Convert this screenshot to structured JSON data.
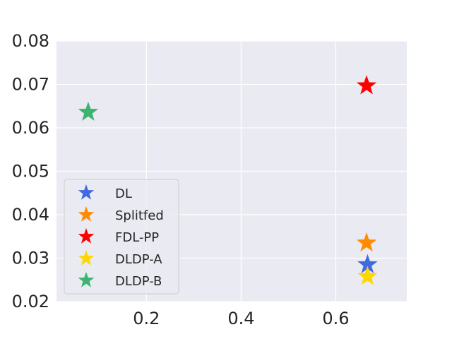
{
  "chart_data": {
    "type": "scatter",
    "marker": "star",
    "grid": true,
    "xlim": [
      0.01,
      0.75
    ],
    "ylim": [
      0.02,
      0.08
    ],
    "x_ticks": [
      0.2,
      0.4,
      0.6
    ],
    "y_ticks": [
      0.02,
      0.03,
      0.04,
      0.05,
      0.06,
      0.07,
      0.08
    ],
    "x_tick_labels": [
      "0.2",
      "0.4",
      "0.6"
    ],
    "y_tick_labels": [
      "0.02",
      "0.03",
      "0.04",
      "0.05",
      "0.06",
      "0.07",
      "0.08"
    ],
    "legend_position": "lower-left",
    "colors": {
      "plot_background": "#eaeaf2",
      "grid": "#ffffff"
    },
    "series": [
      {
        "name": "DL",
        "color": "#4169e1",
        "x": 0.667,
        "y": 0.0285
      },
      {
        "name": "Splitfed",
        "color": "#ff8c00",
        "x": 0.665,
        "y": 0.0335
      },
      {
        "name": "FDL-PP",
        "color": "#ff0000",
        "x": 0.665,
        "y": 0.0697
      },
      {
        "name": "DLDP-A",
        "color": "#ffd700",
        "x": 0.667,
        "y": 0.0258
      },
      {
        "name": "DLDP-B",
        "color": "#3cb371",
        "x": 0.077,
        "y": 0.0636
      }
    ]
  }
}
